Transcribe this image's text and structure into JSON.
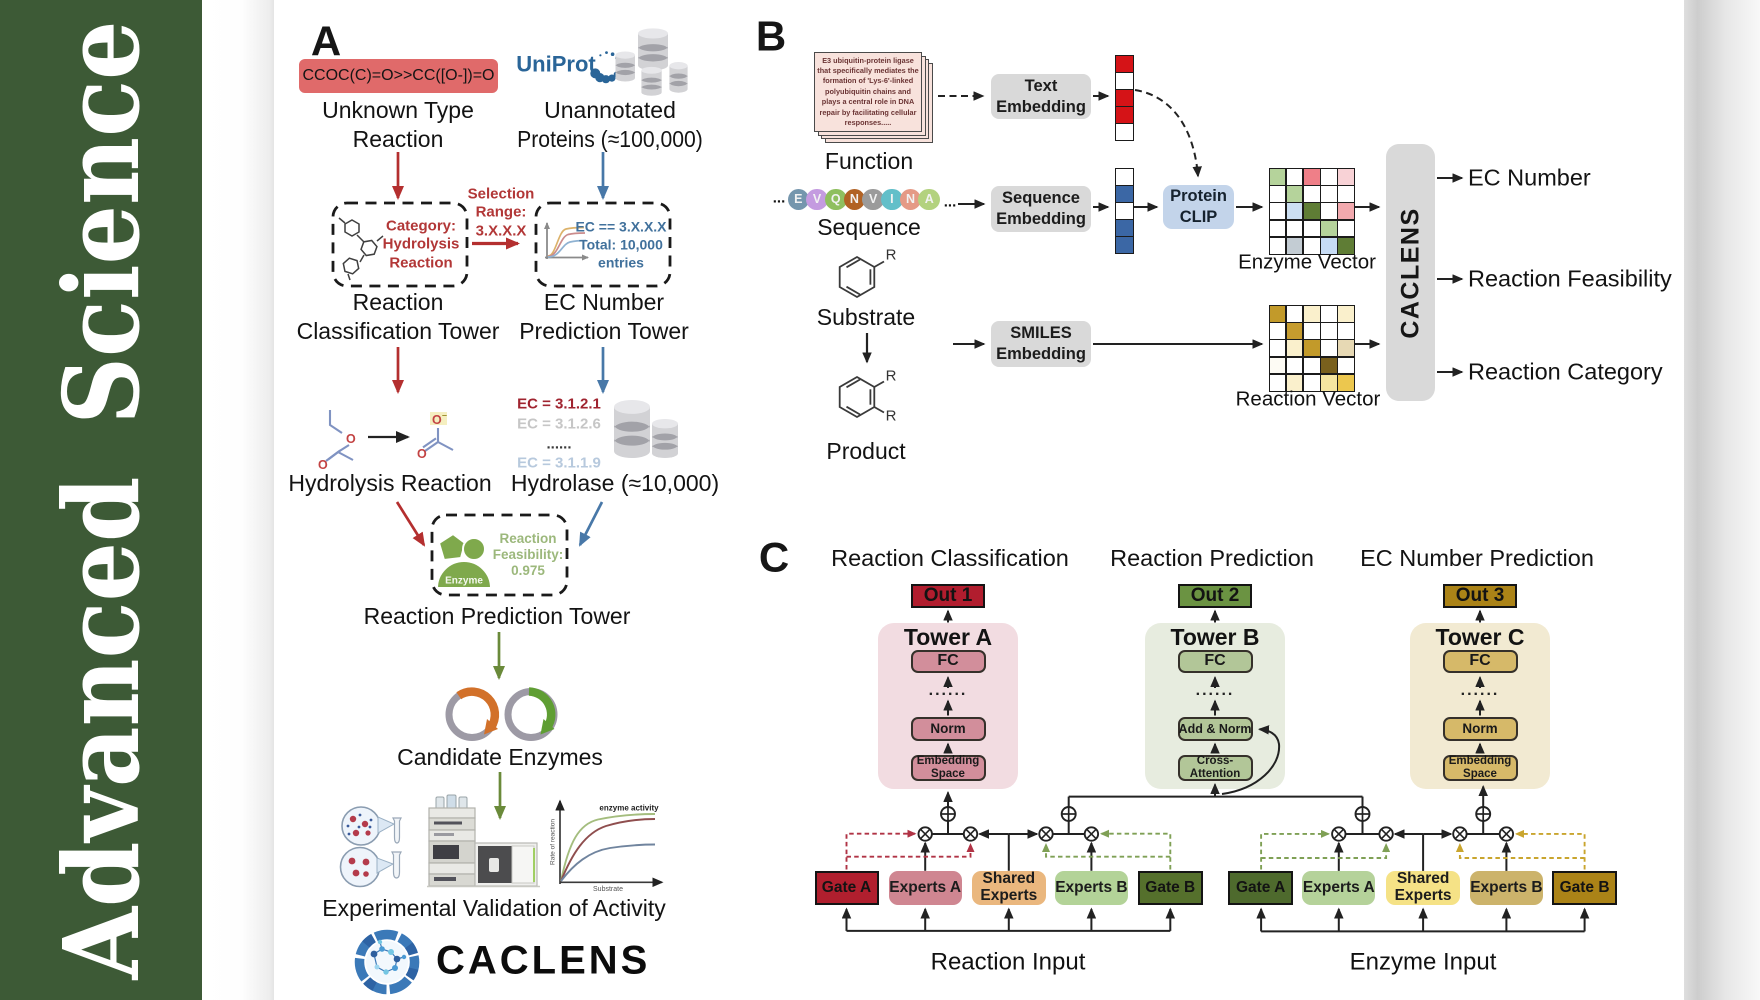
{
  "journal_band": {
    "word1": "Advanced",
    "word2": "Science",
    "bg_color": "#3d5a36",
    "text_color": "#ffffff"
  },
  "panel_a": {
    "label": "A",
    "smiles_box": {
      "text": "CCOC(C)=O>>CC([O-])=O",
      "bg_color": "#e06a6a"
    },
    "unknown_reaction": [
      "Unknown Type",
      "Reaction"
    ],
    "uniprot_logo": "UniProt",
    "unannotated_proteins": [
      "Unannotated",
      "Proteins (≈100,000)"
    ],
    "category_box": [
      "Category:",
      "Hydrolysis",
      "Reaction"
    ],
    "selection_range": [
      "Selection",
      "Range:",
      "3.X.X.X"
    ],
    "ec_box": [
      "EC == 3.X.X.X",
      "Total: 10,000",
      "entries"
    ],
    "classification_tower": [
      "Reaction",
      "Classification Tower"
    ],
    "prediction_tower": [
      "EC Number",
      "Prediction Tower"
    ],
    "ec_list": [
      {
        "t": "EC = 3.1.2.1",
        "c": "#a02430"
      },
      {
        "t": "EC = 3.1.2.6",
        "c": "#c6c6c6"
      },
      {
        "t": "......",
        "c": "#3a3a3a"
      },
      {
        "t": "EC = 3.1.1.9",
        "c": "#b7c9dd"
      }
    ],
    "hydrolysis_reaction": "Hydrolysis Reaction",
    "hydrolase": "Hydrolase (≈10,000)",
    "enzyme_badge": "Enzyme",
    "feasibility": [
      "Reaction",
      "Feasibility:",
      "0.975"
    ],
    "reaction_prediction_tower": "Reaction Prediction Tower",
    "candidate_enzymes": "Candidate Enzymes",
    "activity_plot": {
      "annotation": "enzyme activity",
      "ylabel": "Rate of reaction",
      "xlabel": "Substrate"
    },
    "experimental_validation": "Experimental Validation of Activity",
    "caclens_wordmark": "CACLENS"
  },
  "panel_b": {
    "label": "B",
    "function_card_lines": [
      "E3 ubiquitin-protein ligase",
      "that specifically mediates the",
      "formation of 'Lys-6'-linked",
      "polyubiquitin chains and",
      "plays a central role in DNA",
      "repair by facilitating cellular",
      "responses....."
    ],
    "function_label": "Function",
    "text_embedding": [
      "Text",
      "Embedding"
    ],
    "text_vector_cells": [
      "#d51317",
      "#ffffff",
      "#d51317",
      "#d51317",
      "#ffffff"
    ],
    "sequence_dots_left": "...",
    "sequence_dots_right": "...",
    "sequence_circles": [
      {
        "t": "E",
        "c": "#7596ad"
      },
      {
        "t": "V",
        "c": "#c49be0"
      },
      {
        "t": "Q",
        "c": "#8fbf5f"
      },
      {
        "t": "N",
        "c": "#b16224"
      },
      {
        "t": "V",
        "c": "#9b9b9b"
      },
      {
        "t": "I",
        "c": "#62bfc9"
      },
      {
        "t": "N",
        "c": "#e59a86"
      },
      {
        "t": "A",
        "c": "#b3d27f"
      }
    ],
    "sequence_label": "Sequence",
    "sequence_embedding": [
      "Sequence",
      "Embedding"
    ],
    "sequence_vector_cells": [
      "#ffffff",
      "#3b67a5",
      "#ffffff",
      "#3b67a5",
      "#3b67a5"
    ],
    "protein_clip": [
      "Protein",
      "CLIP"
    ],
    "substrate_label": "Substrate",
    "substituent_r": "R",
    "product_label": "Product",
    "smiles_embedding": [
      "SMILES",
      "Embedding"
    ],
    "enzyme_vector": {
      "label": "Enzyme Vector",
      "cells": [
        "#b5d39b",
        "#ffffff",
        "#ef7f88",
        "#ffffff",
        "#f8d2d6",
        "#ffffff",
        "#b5d39b",
        "#ffffff",
        "#ffffff",
        "#ffffff",
        "#ffffff",
        "#ccdff2",
        "#5f7d35",
        "#ffffff",
        "#f2a9ae",
        "#ffffff",
        "#ffffff",
        "#ffffff",
        "#b5d39b",
        "#ffffff",
        "#ffffff",
        "#c3ccd3",
        "#ffffff",
        "#c7dcf5",
        "#5f7d35"
      ]
    },
    "reaction_vector": {
      "label": "Reaction Vector",
      "cells": [
        "#c29a2a",
        "#ffffff",
        "#faf0cc",
        "#ffffff",
        "#faf0cc",
        "#ffffff",
        "#c69c2e",
        "#ffffff",
        "#ffffff",
        "#ffffff",
        "#ffffff",
        "#faf0cc",
        "#c29a2a",
        "#ffffff",
        "#e7d9b4",
        "#fdfbf4",
        "#ffffff",
        "#ffffff",
        "#79601d",
        "#ffffff",
        "#ffffff",
        "#faf0cc",
        "#ffffff",
        "#f5e5a0",
        "#ecc74e"
      ]
    },
    "caclens_box": "CACLENS",
    "outputs": [
      "EC Number",
      "Reaction Feasibility",
      "Reaction Category"
    ]
  },
  "panel_c": {
    "label": "C",
    "column_titles": [
      "Reaction Classification",
      "Reaction Prediction",
      "EC Number Prediction"
    ],
    "outs": [
      {
        "t": "Out 1",
        "c": "#b11d2e"
      },
      {
        "t": "Out 2",
        "c": "#6b9342"
      },
      {
        "t": "Out 3",
        "c": "#ab8317"
      }
    ],
    "tower_a": {
      "title": "Tower A",
      "fc": "FC",
      "dots": "......",
      "norm": "Norm",
      "embed": [
        "Embedding",
        "Space"
      ]
    },
    "tower_b": {
      "title": "Tower B",
      "fc": "FC",
      "dots": "......",
      "norm": "Add & Norm",
      "embed": [
        "Cross-",
        "Attention"
      ]
    },
    "tower_c": {
      "title": "Tower C",
      "fc": "FC",
      "dots": "......",
      "norm": "Norm",
      "embed": [
        "Embedding",
        "Space"
      ]
    },
    "left_group": {
      "gate_a": {
        "t": "Gate A",
        "c": "#b01f2e"
      },
      "experts_a": {
        "t": "Experts A",
        "c": "#cf8691"
      },
      "shared": {
        "lines": [
          "Shared",
          "Experts"
        ],
        "c": "#eab77e"
      },
      "experts_b": {
        "t": "Experts B",
        "c": "#b3d398"
      },
      "gate_b": {
        "t": "Gate B",
        "c": "#55702c"
      },
      "input_label": "Reaction Input"
    },
    "right_group": {
      "gate_a": {
        "t": "Gate A",
        "c": "#4e6a2d"
      },
      "experts_a": {
        "t": "Experts A",
        "c": "#b5d29a"
      },
      "shared": {
        "lines": [
          "Shared",
          "Experts"
        ],
        "c": "#f5e286"
      },
      "experts_b": {
        "t": "Experts B",
        "c": "#ccb36b"
      },
      "gate_b": {
        "t": "Gate B",
        "c": "#ab8317"
      },
      "input_label": "Enzyme Input"
    }
  },
  "colors": {
    "red_arrow": "#b42f2f",
    "blue_arrow": "#4878a8",
    "green_arrow": "#6a8a3a",
    "tower_a_bg": "#f2dce1",
    "tower_b_bg": "#e7ecdf",
    "tower_c_bg": "#f2ead2",
    "fc_a": "#d28e9b",
    "fc_b": "#b2c698",
    "fc_c": "#d6b969",
    "dash_red": "#b03345",
    "dash_green": "#7fa055",
    "dash_gold": "#c9a52e",
    "enzyme_green": "#7fa94c",
    "uniprot_blue": "#2a6598",
    "clip_blue": "#c3d4ea"
  }
}
